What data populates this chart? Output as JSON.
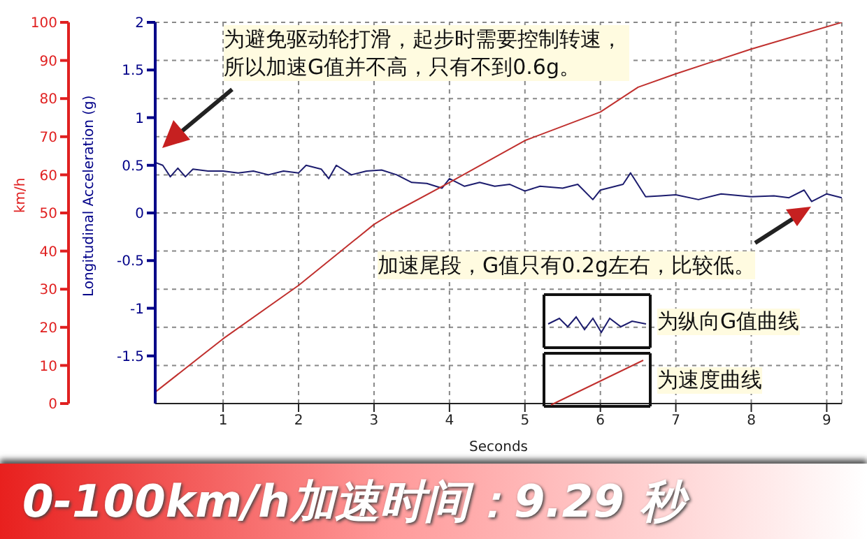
{
  "chart_data": {
    "type": "line",
    "title": "0-100km/h加速时间：9.29 秒",
    "xlabel": "Seconds",
    "ylabel": "Longitudinal Acceleration (g)",
    "y2label": "km/h",
    "annotations": [
      "为避免驱动轮打滑，起步时需要控制转速，所以加速G值并不高，只有不到0.6g。",
      "加速尾段，G值只有0.2g左右，比较低。"
    ],
    "xlim": [
      0.1,
      9.2
    ],
    "xticks": [
      1,
      2,
      3,
      4,
      5,
      6,
      7,
      8,
      9
    ],
    "ylim": [
      -2,
      2
    ],
    "yticks": [
      -1.5,
      -1,
      -0.5,
      0,
      0.5,
      1,
      1.5,
      2
    ],
    "y2lim": [
      0,
      100
    ],
    "y2ticks": [
      0,
      10,
      20,
      30,
      40,
      50,
      60,
      70,
      80,
      90,
      100
    ],
    "grid": true,
    "legend": "bottom right",
    "marker": "none",
    "line_style": "solid",
    "series": [
      {
        "name": "为纵向G值曲线",
        "color": "#1c1c6e",
        "x": [
          0.1,
          0.2,
          0.3,
          0.4,
          0.5,
          0.6,
          0.8,
          1.0,
          1.2,
          1.4,
          1.6,
          1.8,
          2.0,
          2.1,
          2.3,
          2.4,
          2.5,
          2.7,
          2.9,
          3.1,
          3.3,
          3.5,
          3.7,
          3.9,
          4.0,
          4.2,
          4.4,
          4.6,
          4.8,
          5.0,
          5.2,
          5.5,
          5.7,
          5.9,
          6.0,
          6.3,
          6.4,
          6.6,
          6.8,
          7.0,
          7.3,
          7.6,
          8.0,
          8.3,
          8.5,
          8.7,
          8.8,
          9.0,
          9.2
        ],
        "values": [
          0.53,
          0.5,
          0.38,
          0.47,
          0.38,
          0.46,
          0.44,
          0.44,
          0.42,
          0.44,
          0.4,
          0.44,
          0.42,
          0.5,
          0.46,
          0.36,
          0.5,
          0.4,
          0.44,
          0.45,
          0.4,
          0.32,
          0.31,
          0.26,
          0.36,
          0.28,
          0.32,
          0.28,
          0.3,
          0.23,
          0.28,
          0.26,
          0.3,
          0.14,
          0.24,
          0.3,
          0.42,
          0.17,
          0.18,
          0.19,
          0.14,
          0.2,
          0.17,
          0.18,
          0.16,
          0.24,
          0.12,
          0.2,
          0.16
        ]
      },
      {
        "name": "为速度曲线",
        "color": "#c0302e",
        "axis": "y2",
        "x": [
          0.1,
          1.0,
          2.0,
          3.0,
          3.25,
          4.0,
          5.0,
          6.0,
          6.5,
          7.0,
          8.0,
          9.2
        ],
        "values": [
          3,
          17,
          31,
          47,
          50,
          58,
          69,
          76.5,
          83,
          86.5,
          93,
          100
        ]
      }
    ]
  }
}
